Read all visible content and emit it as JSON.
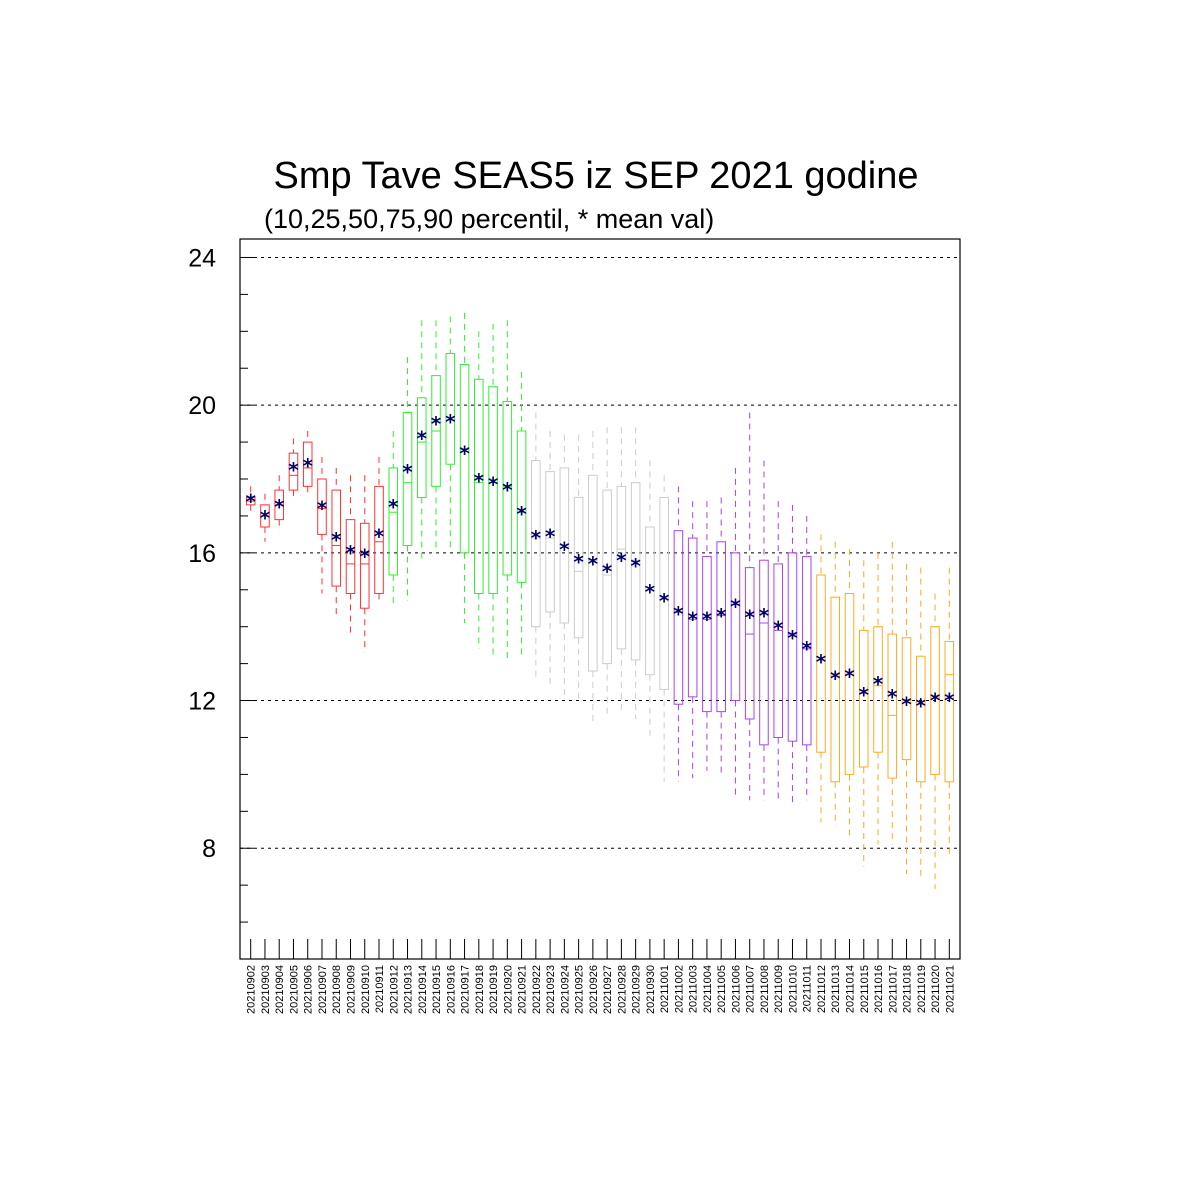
{
  "chart_data": {
    "type": "box",
    "title": "Smp Tave SEAS5 iz SEP 2021 godine",
    "subtitle": "(10,25,50,75,90 percentil, * mean val)",
    "ylim": [
      5,
      24.5
    ],
    "yticks": [
      8,
      12,
      16,
      20,
      24
    ],
    "grid": "horizontal dashed at major ticks",
    "mean_marker": "*",
    "mean_color": "#000066",
    "periods": [
      {
        "color": "#ff3333",
        "from": 0,
        "to": 9
      },
      {
        "color": "#33ee33",
        "from": 10,
        "to": 19
      },
      {
        "color": "#cccccc",
        "from": 20,
        "to": 29
      },
      {
        "color": "#aa44ee",
        "from": 30,
        "to": 39
      },
      {
        "color": "#ffaa22",
        "from": 40,
        "to": 50
      }
    ],
    "categories": [
      "20210902",
      "20210903",
      "20210904",
      "20210905",
      "20210906",
      "20210907",
      "20210908",
      "20210909",
      "20210910",
      "20210911",
      "20210912",
      "20210913",
      "20210914",
      "20210915",
      "20210916",
      "20210917",
      "20210918",
      "20210919",
      "20210920",
      "20210921",
      "20210922",
      "20210923",
      "20210924",
      "20210925",
      "20210926",
      "20210927",
      "20210928",
      "20210929",
      "20210930",
      "20211001",
      "20211002",
      "20211003",
      "20211004",
      "20211005",
      "20211006",
      "20211007",
      "20211008",
      "20211009",
      "20211010",
      "20211011",
      "20211012",
      "20211013",
      "20211014",
      "20211015",
      "20211016",
      "20211017",
      "20211018",
      "20211019",
      "20211020",
      "20211021"
    ],
    "p10": [
      17.0,
      16.3,
      16.6,
      17.5,
      17.5,
      14.9,
      14.2,
      13.8,
      13.3,
      14.6,
      14.6,
      14.7,
      15.8,
      16.0,
      16.1,
      14.1,
      13.4,
      13.2,
      13.1,
      13.2,
      12.5,
      12.4,
      12.1,
      12.0,
      11.4,
      11.6,
      11.7,
      11.5,
      11.0,
      9.8,
      9.8,
      9.9,
      10.1,
      10.0,
      9.4,
      9.3,
      9.3,
      9.3,
      9.2,
      9.3,
      8.7,
      8.6,
      8.3,
      7.5,
      8.1,
      8.1,
      7.3,
      7.2,
      6.9,
      7.8
    ],
    "q1": [
      17.3,
      16.7,
      16.9,
      17.7,
      17.8,
      16.5,
      15.1,
      14.9,
      14.5,
      14.9,
      15.4,
      16.2,
      17.5,
      17.8,
      18.4,
      16.0,
      14.9,
      14.9,
      15.4,
      15.2,
      14.0,
      14.4,
      14.1,
      13.7,
      12.8,
      13.0,
      13.4,
      13.1,
      12.7,
      12.3,
      11.9,
      12.1,
      11.7,
      11.7,
      12.0,
      11.5,
      10.8,
      11.0,
      10.9,
      10.8,
      10.6,
      9.8,
      10.0,
      10.2,
      10.6,
      9.9,
      10.4,
      9.8,
      10.0,
      9.8
    ],
    "median": [
      17.4,
      17.0,
      17.3,
      18.1,
      18.3,
      17.2,
      16.2,
      15.7,
      15.7,
      16.3,
      17.1,
      17.9,
      19.0,
      19.3,
      19.6,
      18.8,
      17.9,
      17.9,
      17.8,
      17.1,
      16.4,
      16.4,
      16.2,
      15.5,
      15.8,
      15.4,
      16.1,
      15.8,
      15.0,
      14.8,
      14.4,
      14.2,
      14.2,
      14.3,
      14.6,
      13.8,
      14.1,
      13.9,
      13.8,
      13.4,
      13.1,
      12.7,
      12.7,
      12.2,
      12.4,
      11.6,
      12.0,
      11.9,
      12.1,
      12.7
    ],
    "q3": [
      17.5,
      17.3,
      17.7,
      18.7,
      19.0,
      18.0,
      17.7,
      16.9,
      16.8,
      17.8,
      18.3,
      19.8,
      20.2,
      20.8,
      21.4,
      21.1,
      20.7,
      20.5,
      20.1,
      19.3,
      18.5,
      18.2,
      18.3,
      17.5,
      18.1,
      17.7,
      17.8,
      17.9,
      16.7,
      17.5,
      16.6,
      16.4,
      15.9,
      16.3,
      16.0,
      15.6,
      15.8,
      15.7,
      16.0,
      15.9,
      15.4,
      14.8,
      14.9,
      13.9,
      14.0,
      13.8,
      13.7,
      13.2,
      14.0,
      13.6
    ],
    "p90": [
      17.8,
      17.6,
      18.1,
      19.1,
      19.3,
      18.6,
      18.3,
      18.1,
      18.1,
      18.6,
      19.3,
      21.3,
      22.3,
      22.3,
      22.4,
      22.5,
      22.0,
      22.2,
      22.3,
      20.9,
      19.8,
      19.3,
      19.2,
      19.2,
      19.3,
      19.4,
      19.4,
      19.4,
      18.5,
      18.1,
      17.8,
      17.4,
      17.4,
      17.5,
      18.3,
      19.8,
      18.5,
      17.4,
      17.3,
      17.0,
      16.5,
      16.3,
      16.1,
      15.8,
      16.0,
      16.3,
      15.7,
      15.6,
      14.9,
      15.6
    ],
    "mean": [
      17.45,
      17.0,
      17.3,
      18.3,
      18.4,
      17.25,
      16.4,
      16.05,
      15.95,
      16.5,
      17.3,
      18.25,
      19.15,
      19.55,
      19.6,
      18.75,
      18.0,
      17.9,
      17.75,
      17.1,
      16.45,
      16.5,
      16.15,
      15.8,
      15.75,
      15.55,
      15.85,
      15.7,
      15.0,
      14.75,
      14.4,
      14.25,
      14.25,
      14.35,
      14.6,
      14.3,
      14.35,
      14.0,
      13.75,
      13.45,
      13.1,
      12.65,
      12.7,
      12.2,
      12.5,
      12.15,
      11.95,
      11.9,
      12.05,
      12.05
    ]
  }
}
